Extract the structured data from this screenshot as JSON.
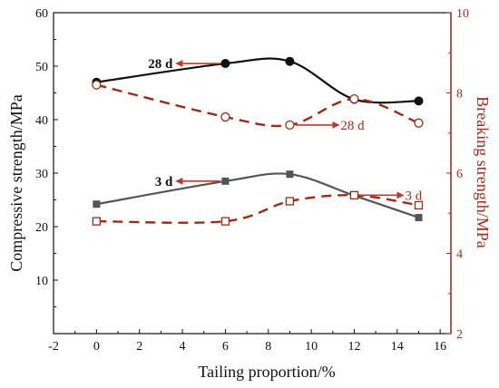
{
  "chart_data": {
    "type": "line",
    "title": "",
    "xlabel": "Tailing proportion/%",
    "ylabel_left": "Compressive strength/MPa",
    "ylabel_right": "Breaking strength/MPa",
    "xlim": [
      -2,
      16.5
    ],
    "ylim_left": [
      0,
      60
    ],
    "ylim_right": [
      2,
      10
    ],
    "x_ticks": [
      -2,
      0,
      2,
      4,
      6,
      8,
      10,
      12,
      14,
      16
    ],
    "y_ticks_left": [
      10,
      20,
      30,
      40,
      50,
      60
    ],
    "y_ticks_right": [
      2,
      4,
      6,
      8,
      10
    ],
    "grid": false,
    "colors": {
      "compressive": "#111111",
      "compressive_3d": "#555555",
      "breaking": "#9b2b14",
      "arrow": "#c0392b",
      "right_axis": "#a52a1a"
    },
    "series": [
      {
        "axis": "left",
        "style": "solid",
        "marker": "circle-filled",
        "x": [
          0,
          6,
          9,
          12,
          15
        ],
        "y": [
          47,
          50.5,
          50.9,
          43.8,
          43.5
        ]
      },
      {
        "axis": "left",
        "style": "solid",
        "marker": "square-filled",
        "x": [
          0,
          6,
          9,
          12,
          15
        ],
        "y": [
          24.2,
          28.5,
          29.8,
          25.8,
          21.7
        ]
      },
      {
        "axis": "right",
        "style": "dashed",
        "marker": "circle-open",
        "x": [
          0,
          6,
          9,
          12,
          15
        ],
        "y": [
          8.2,
          7.4,
          7.2,
          7.85,
          7.25
        ]
      },
      {
        "axis": "right",
        "style": "dashed",
        "marker": "square-open",
        "x": [
          0,
          6,
          9,
          12,
          15
        ],
        "y": [
          4.8,
          4.8,
          5.3,
          5.45,
          5.2
        ]
      }
    ],
    "annotations": [
      {
        "text": "28 d",
        "bold": true,
        "direction": "left",
        "x": 6,
        "y": 50.5,
        "axis": "left"
      },
      {
        "text": "3 d",
        "bold": true,
        "direction": "left",
        "x": 6,
        "y": 28.5,
        "axis": "left"
      },
      {
        "text": "28 d",
        "bold": false,
        "direction": "right",
        "x": 9,
        "y": 7.2,
        "axis": "right"
      },
      {
        "text": "3 d",
        "bold": false,
        "direction": "right",
        "x": 12,
        "y": 5.45,
        "axis": "right"
      }
    ]
  }
}
